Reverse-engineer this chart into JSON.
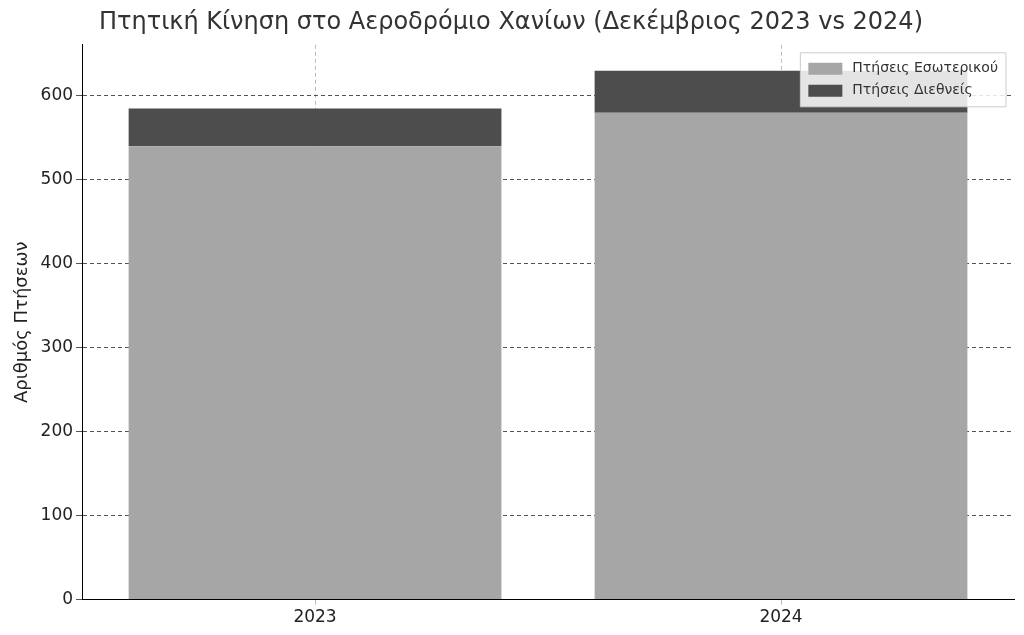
{
  "chart_data": {
    "type": "bar",
    "title": "Πτητική Κίνηση στο Αεροδρόμιο Χανίων (Δεκέμβριος 2023 vs 2024)",
    "ylabel": "Αριθμός Πτήσεων",
    "categories": [
      "2023",
      "2024"
    ],
    "series": [
      {
        "name": "Πτήσεις Εσωτερικού",
        "color": "#a6a6a6",
        "values": [
          540,
          580
        ]
      },
      {
        "name": "Πτήσεις Διεθνείς",
        "color": "#4d4d4d",
        "values": [
          45,
          50
        ]
      }
    ],
    "stacked": true,
    "ylim": [
      0,
      661
    ],
    "yticks": [
      0,
      100,
      200,
      300,
      400,
      500,
      600
    ],
    "grid": true,
    "legend": "top right"
  }
}
